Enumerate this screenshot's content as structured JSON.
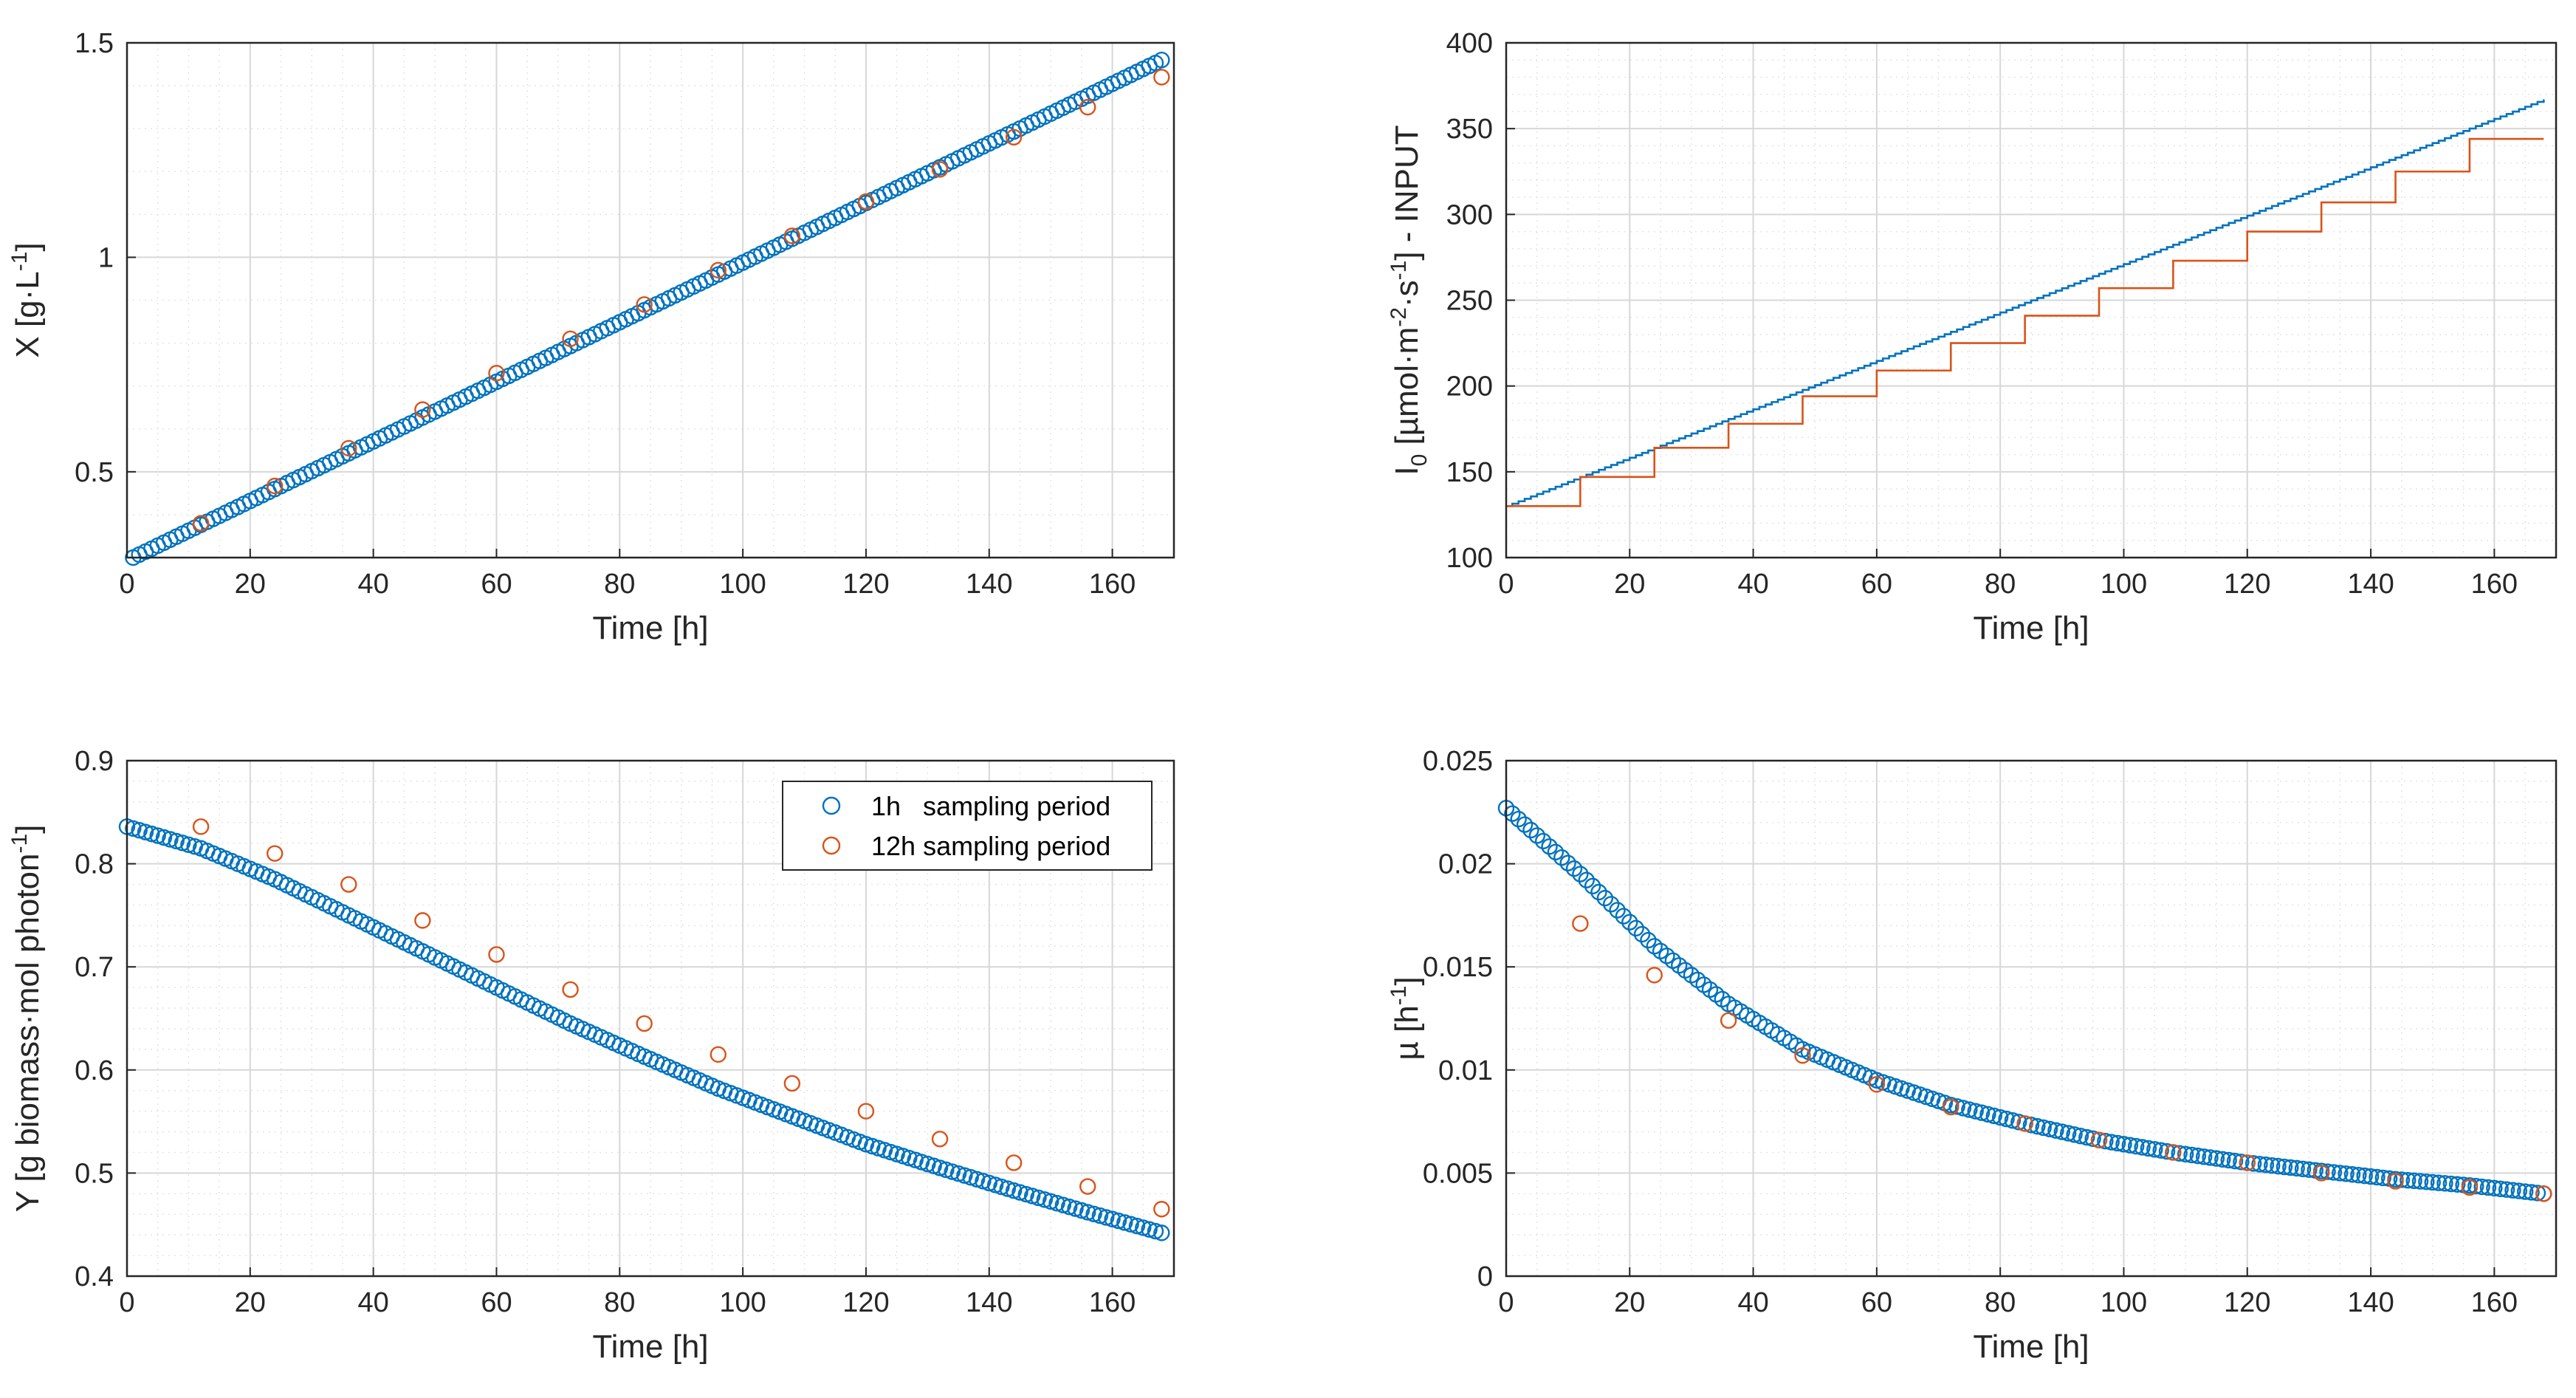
{
  "colors": {
    "series_1h": "#0072BD",
    "series_12h": "#D95319"
  },
  "legend": {
    "entry_1h": "1h   sampling period",
    "entry_12h": "12h sampling period"
  },
  "chart_data": [
    {
      "id": "x",
      "type": "scatter",
      "title": "",
      "xlabel": "Time [h]",
      "ylabel": "X [g·L⁻¹]",
      "xlim": [
        0,
        170
      ],
      "ylim": [
        0.3,
        1.5
      ],
      "xticks": [
        "0",
        "20",
        "40",
        "60",
        "80",
        "100",
        "120",
        "140",
        "160"
      ],
      "yticks": [
        "0.5",
        "1",
        "1.5"
      ],
      "grid": true,
      "minor_grid": true,
      "series": [
        {
          "name": "1h sampling period",
          "marker": "circle",
          "x_range": [
            1,
            168,
            1
          ],
          "y_linear": [
            0.3,
            1.46
          ]
        },
        {
          "name": "12h sampling period",
          "marker": "circle",
          "x": [
            12,
            24,
            36,
            48,
            60,
            72,
            84,
            96,
            108,
            120,
            132,
            144,
            156,
            168
          ],
          "y": [
            0.38,
            0.467,
            0.555,
            0.645,
            0.73,
            0.81,
            0.89,
            0.97,
            1.05,
            1.13,
            1.205,
            1.28,
            1.35,
            1.42
          ]
        }
      ]
    },
    {
      "id": "i0",
      "type": "line",
      "title": "",
      "xlabel": "Time [h]",
      "ylabel": "I₀ [µmol·m⁻²·s⁻¹] - INPUT",
      "xlim": [
        0,
        170
      ],
      "ylim": [
        100,
        400
      ],
      "xticks": [
        "0",
        "20",
        "40",
        "60",
        "80",
        "100",
        "120",
        "140",
        "160"
      ],
      "yticks": [
        "100",
        "150",
        "200",
        "250",
        "300",
        "350",
        "400"
      ],
      "grid": true,
      "minor_grid": true,
      "series": [
        {
          "name": "1h sampling period",
          "style": "stairs",
          "x_range": [
            0,
            168,
            1
          ],
          "y_linear": [
            130,
            367
          ]
        },
        {
          "name": "12h sampling period",
          "style": "stairs",
          "x": [
            0,
            12,
            24,
            36,
            48,
            60,
            72,
            84,
            96,
            108,
            120,
            132,
            144,
            156,
            168
          ],
          "y": [
            130,
            147,
            164,
            178,
            194,
            209,
            225,
            241,
            257,
            273,
            290,
            307,
            325,
            344,
            344
          ]
        }
      ]
    },
    {
      "id": "y",
      "type": "scatter",
      "title": "",
      "xlabel": "Time [h]",
      "ylabel": "Y [g biomass·mol photon⁻¹]",
      "xlim": [
        0,
        170
      ],
      "ylim": [
        0.4,
        0.9
      ],
      "xticks": [
        "0",
        "20",
        "40",
        "60",
        "80",
        "100",
        "120",
        "140",
        "160"
      ],
      "yticks": [
        "0.4",
        "0.5",
        "0.6",
        "0.7",
        "0.8",
        "0.9"
      ],
      "grid": true,
      "minor_grid": true,
      "legend": "top-right",
      "series": [
        {
          "name": "1h sampling period",
          "marker": "circle",
          "x_range": [
            0,
            168,
            1
          ],
          "knots_x": [
            0,
            12,
            24,
            36,
            48,
            60,
            72,
            84,
            96,
            108,
            120,
            132,
            144,
            156,
            168
          ],
          "knots_y": [
            0.836,
            0.815,
            0.785,
            0.75,
            0.715,
            0.68,
            0.645,
            0.613,
            0.582,
            0.555,
            0.528,
            0.505,
            0.483,
            0.462,
            0.442
          ]
        },
        {
          "name": "12h sampling period",
          "marker": "circle",
          "x": [
            12,
            24,
            36,
            48,
            60,
            72,
            84,
            96,
            108,
            120,
            132,
            144,
            156,
            168
          ],
          "y": [
            0.836,
            0.81,
            0.78,
            0.745,
            0.712,
            0.678,
            0.645,
            0.615,
            0.587,
            0.56,
            0.533,
            0.51,
            0.487,
            0.465
          ]
        }
      ]
    },
    {
      "id": "mu",
      "type": "scatter",
      "title": "",
      "xlabel": "Time [h]",
      "ylabel": "µ [h⁻¹]",
      "xlim": [
        0,
        170
      ],
      "ylim": [
        0,
        0.025
      ],
      "xticks": [
        "0",
        "20",
        "40",
        "60",
        "80",
        "100",
        "120",
        "140",
        "160"
      ],
      "yticks": [
        "0",
        "0.005",
        "0.01",
        "0.015",
        "0.02",
        "0.025"
      ],
      "grid": true,
      "minor_grid": true,
      "series": [
        {
          "name": "1h sampling period",
          "marker": "circle",
          "x_range": [
            0,
            168,
            1
          ],
          "knots_x": [
            0,
            12,
            24,
            36,
            48,
            60,
            72,
            84,
            96,
            108,
            120,
            132,
            144,
            156,
            168
          ],
          "knots_y": [
            0.0227,
            0.0195,
            0.016,
            0.0132,
            0.011,
            0.0095,
            0.0083,
            0.0074,
            0.0066,
            0.006,
            0.0055,
            0.0051,
            0.0047,
            0.0044,
            0.004
          ]
        },
        {
          "name": "12h sampling period",
          "marker": "circle",
          "x": [
            12,
            24,
            36,
            48,
            60,
            72,
            84,
            96,
            108,
            120,
            132,
            144,
            156,
            168
          ],
          "y": [
            0.0171,
            0.0146,
            0.0124,
            0.0107,
            0.0093,
            0.0082,
            0.0074,
            0.0066,
            0.006,
            0.0055,
            0.005,
            0.0046,
            0.0043,
            0.004
          ]
        }
      ]
    }
  ]
}
